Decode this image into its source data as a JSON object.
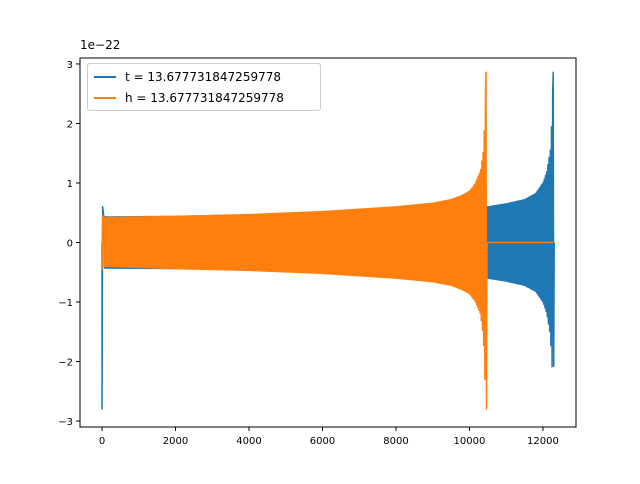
{
  "chart_data": {
    "type": "line",
    "offset_text": "1e−22",
    "xlim": [
      -600,
      12900
    ],
    "ylim": [
      -3.1,
      3.1
    ],
    "x_ticks": [
      0,
      2000,
      4000,
      6000,
      8000,
      10000,
      12000
    ],
    "x_tick_labels": [
      "0",
      "2000",
      "4000",
      "6000",
      "8000",
      "10000",
      "12000"
    ],
    "y_ticks": [
      -3,
      -2,
      -1,
      0,
      1,
      2,
      3
    ],
    "y_tick_labels": [
      "−3",
      "−2",
      "−1",
      "0",
      "1",
      "2",
      "3"
    ],
    "grid": false,
    "legend_position": "upper-left",
    "series": [
      {
        "name": "t = 13.677731847259778",
        "color": "#1f77b4",
        "x_start": 0,
        "x_end": 12280,
        "initial_spike": {
          "x": 0,
          "min": -2.8,
          "max": 0.6
        },
        "envelope": {
          "x": [
            50,
            2000,
            4000,
            6000,
            8000,
            10000,
            10500,
            11000,
            11500,
            11800,
            12000,
            12100,
            12200,
            12250,
            12280
          ],
          "upper": [
            0.43,
            0.44,
            0.46,
            0.48,
            0.51,
            0.57,
            0.6,
            0.65,
            0.72,
            0.82,
            1.0,
            1.18,
            1.55,
            2.15,
            2.86
          ],
          "lower": [
            -0.43,
            -0.44,
            -0.46,
            -0.48,
            -0.51,
            -0.57,
            -0.6,
            -0.65,
            -0.72,
            -0.82,
            -1.0,
            -1.18,
            -1.55,
            -2.1,
            -2.08
          ]
        }
      },
      {
        "name": "h = 13.677731847259778",
        "color": "#ff7f0e",
        "x_start": 0,
        "x_end": 12280,
        "initial_spike": {
          "x": 0,
          "min": -0.45,
          "max": 0.45
        },
        "envelope": {
          "x": [
            50,
            2000,
            4000,
            6000,
            8000,
            9000,
            9500,
            9800,
            10000,
            10150,
            10300,
            10380,
            10420,
            10450
          ],
          "upper": [
            0.42,
            0.44,
            0.47,
            0.52,
            0.6,
            0.66,
            0.72,
            0.79,
            0.86,
            0.98,
            1.2,
            1.55,
            2.1,
            2.86
          ],
          "lower": [
            -0.4,
            -0.44,
            -0.47,
            -0.52,
            -0.6,
            -0.66,
            -0.72,
            -0.79,
            -0.86,
            -0.98,
            -1.2,
            -1.6,
            -2.3,
            -2.8
          ]
        },
        "flat_after": {
          "x_from": 10450,
          "x_to": 12280,
          "y": 0.0
        }
      }
    ]
  }
}
